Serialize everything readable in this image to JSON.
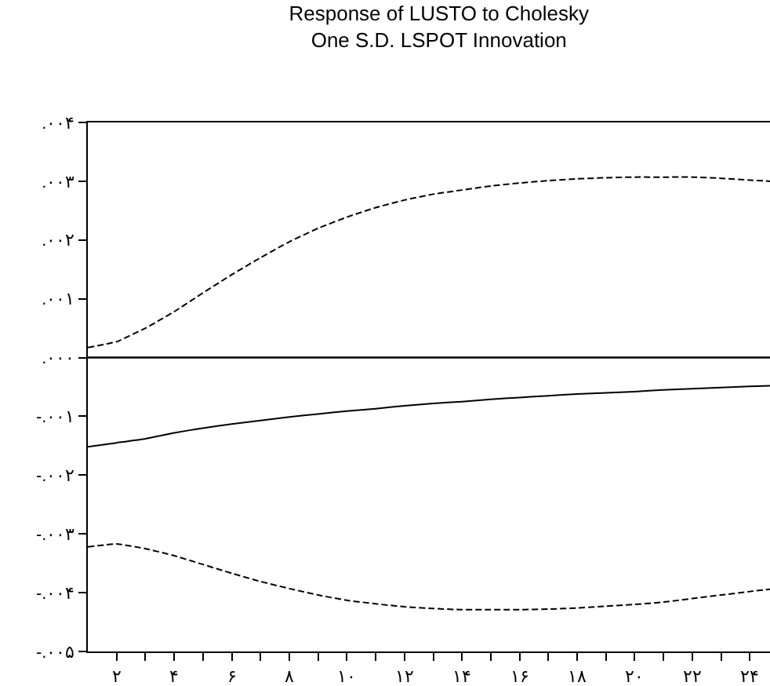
{
  "chart_data": {
    "type": "line",
    "title": "Response of LUSTO to Cholesky\nOne S.D. LSPOT Innovation",
    "xlim": [
      1,
      24.7
    ],
    "ylim": [
      -0.005,
      0.004
    ],
    "xticks": [
      {
        "value": 2,
        "label": "۲"
      },
      {
        "value": 3,
        "label": null
      },
      {
        "value": 4,
        "label": "۴"
      },
      {
        "value": 5,
        "label": null
      },
      {
        "value": 6,
        "label": "۶"
      },
      {
        "value": 7,
        "label": null
      },
      {
        "value": 8,
        "label": "۸"
      },
      {
        "value": 9,
        "label": null
      },
      {
        "value": 10,
        "label": "۱۰"
      },
      {
        "value": 11,
        "label": null
      },
      {
        "value": 12,
        "label": "۱۲"
      },
      {
        "value": 13,
        "label": null
      },
      {
        "value": 14,
        "label": "۱۴"
      },
      {
        "value": 15,
        "label": null
      },
      {
        "value": 16,
        "label": "۱۶"
      },
      {
        "value": 17,
        "label": null
      },
      {
        "value": 18,
        "label": "۱۸"
      },
      {
        "value": 19,
        "label": null
      },
      {
        "value": 20,
        "label": "۲۰"
      },
      {
        "value": 21,
        "label": null
      },
      {
        "value": 22,
        "label": "۲۲"
      },
      {
        "value": 23,
        "label": null
      },
      {
        "value": 24,
        "label": "۲۴"
      }
    ],
    "yticks": [
      {
        "value": 0.004,
        "label": ".۰۰۴"
      },
      {
        "value": 0.003,
        "label": ".۰۰۳"
      },
      {
        "value": 0.002,
        "label": ".۰۰۲"
      },
      {
        "value": 0.001,
        "label": ".۰۰۱"
      },
      {
        "value": 0,
        "label": ".۰۰۰"
      },
      {
        "value": -0.001,
        "label": "-.۰۰۱"
      },
      {
        "value": -0.002,
        "label": "-.۰۰۲"
      },
      {
        "value": -0.003,
        "label": "-.۰۰۳"
      },
      {
        "value": -0.004,
        "label": "-.۰۰۴"
      },
      {
        "value": -0.005,
        "label": "-.۰۰۵"
      }
    ],
    "marker": "none",
    "ref_lines": [
      {
        "axis": "y",
        "value": 0,
        "color": "#000000",
        "line_style": "solid"
      }
    ],
    "series": [
      {
        "color": "#000000",
        "line_style": "solid",
        "x": [
          1,
          2,
          3,
          4,
          5,
          6,
          7,
          8,
          9,
          10,
          11,
          12,
          13,
          14,
          15,
          16,
          17,
          18,
          19,
          20,
          21,
          22,
          23,
          24,
          24.7
        ],
        "values": [
          -0.00152,
          -0.00145,
          -0.00138,
          -0.00128,
          -0.0012,
          -0.00113,
          -0.00107,
          -0.00101,
          -0.00096,
          -0.00091,
          -0.00087,
          -0.00082,
          -0.00078,
          -0.00075,
          -0.00071,
          -0.00068,
          -0.00065,
          -0.00062,
          -0.0006,
          -0.00058,
          -0.00055,
          -0.00053,
          -0.00051,
          -0.00049,
          -0.00048
        ]
      },
      {
        "color": "#000000",
        "line_style": "dashed",
        "x": [
          1,
          2,
          3,
          4,
          5,
          6,
          7,
          8,
          9,
          10,
          11,
          12,
          13,
          14,
          15,
          16,
          17,
          18,
          19,
          20,
          21,
          22,
          23,
          24,
          24.7
        ],
        "values": [
          0.00017,
          0.00027,
          0.0005,
          0.00078,
          0.0011,
          0.00141,
          0.0017,
          0.00197,
          0.0022,
          0.00239,
          0.00255,
          0.00268,
          0.00278,
          0.00285,
          0.00292,
          0.00297,
          0.00301,
          0.00304,
          0.00306,
          0.00307,
          0.00307,
          0.00307,
          0.00305,
          0.00302,
          0.003
        ]
      },
      {
        "color": "#000000",
        "line_style": "dashed",
        "x": [
          1,
          2,
          3,
          4,
          5,
          6,
          7,
          8,
          9,
          10,
          11,
          12,
          13,
          14,
          15,
          16,
          17,
          18,
          19,
          20,
          21,
          22,
          23,
          24,
          24.7
        ],
        "values": [
          -0.00322,
          -0.00317,
          -0.00325,
          -0.00337,
          -0.00352,
          -0.00367,
          -0.00381,
          -0.00393,
          -0.00404,
          -0.00413,
          -0.00419,
          -0.00424,
          -0.00427,
          -0.00429,
          -0.00429,
          -0.00429,
          -0.00428,
          -0.00426,
          -0.00423,
          -0.0042,
          -0.00416,
          -0.0041,
          -0.00404,
          -0.00398,
          -0.00394
        ]
      }
    ]
  }
}
